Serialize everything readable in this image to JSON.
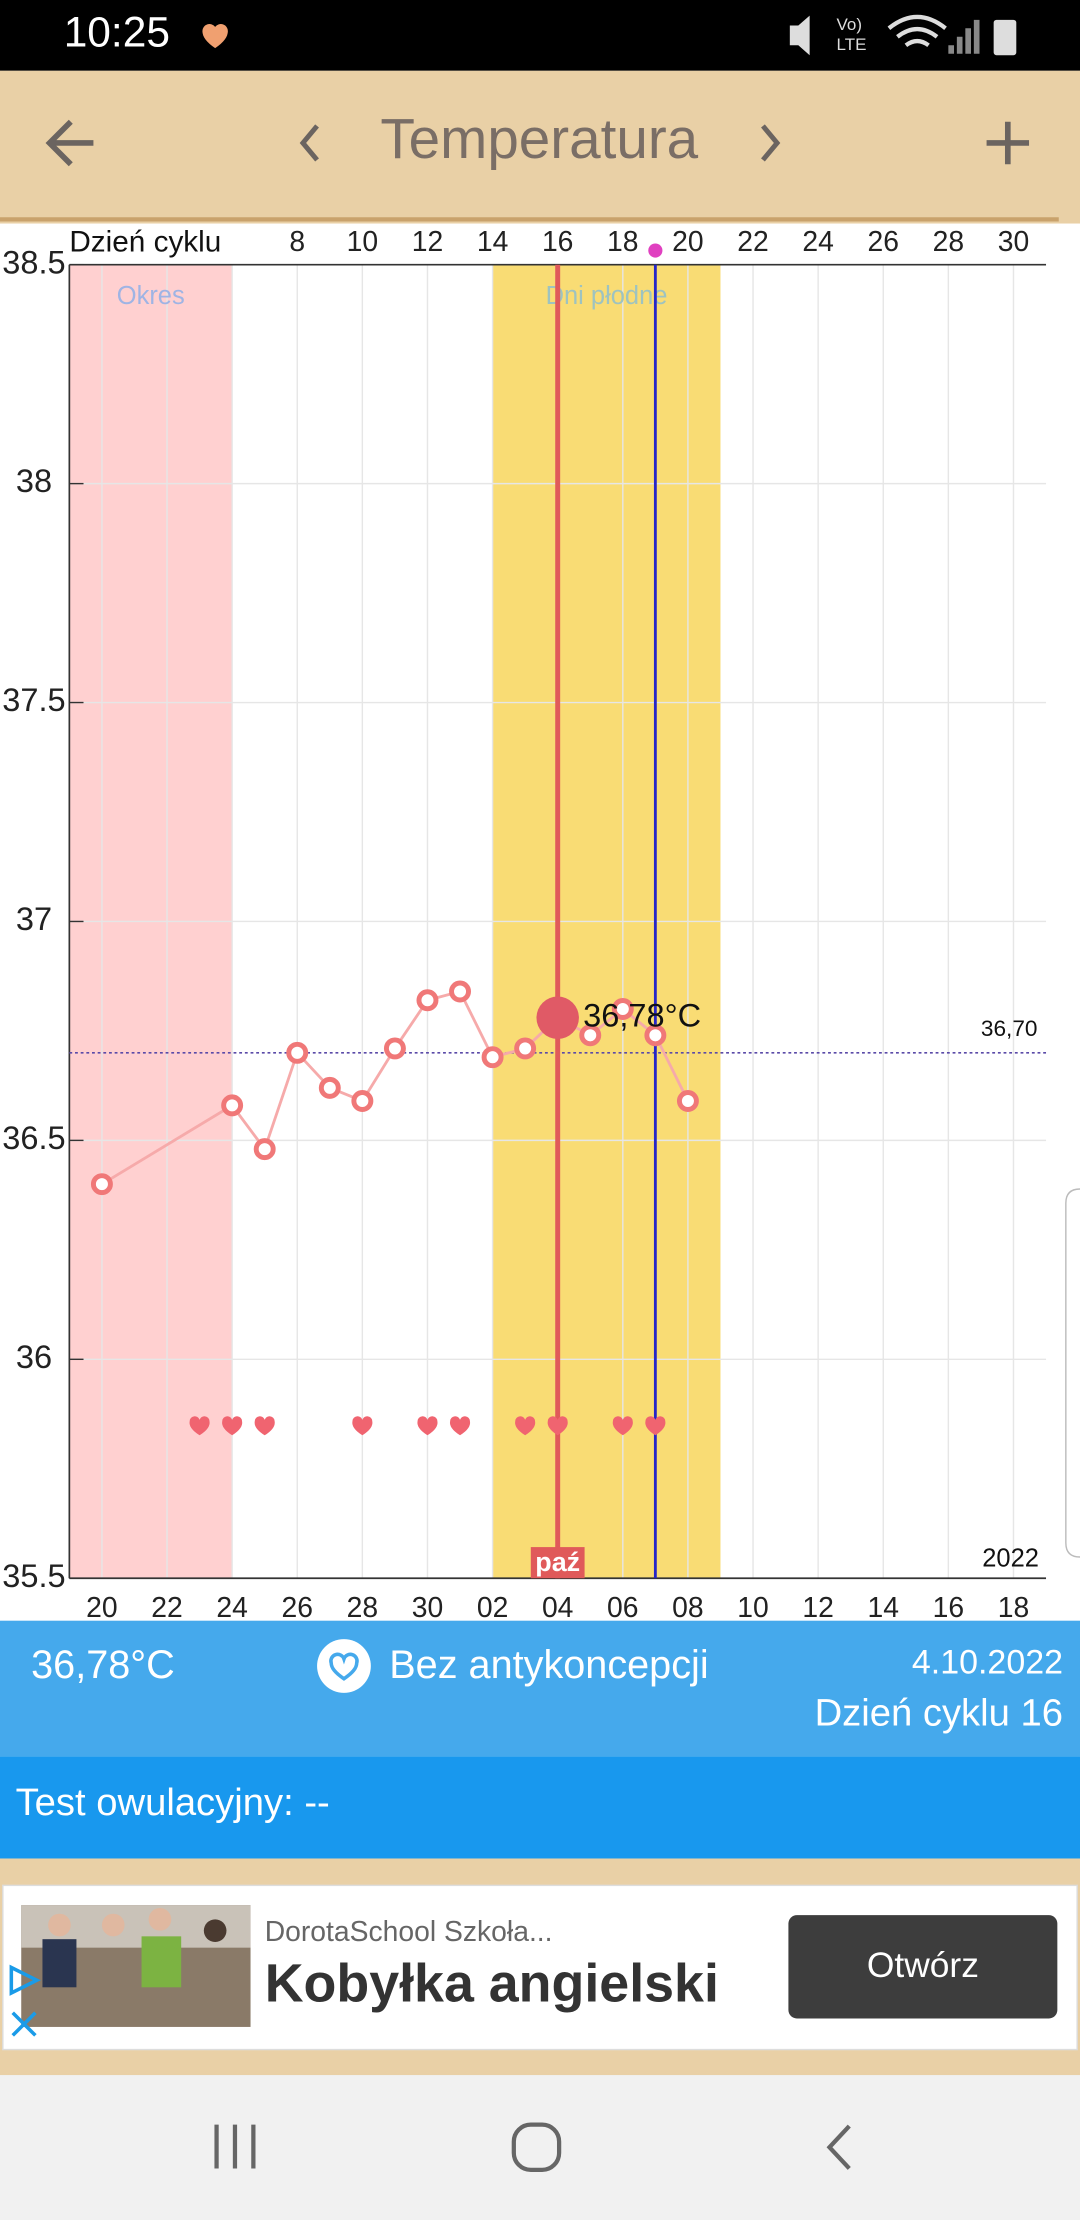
{
  "status_bar": {
    "time": "10:25",
    "network": [
      "Vo)",
      "LTE"
    ]
  },
  "header": {
    "title": "Temperatura"
  },
  "chart_data": {
    "type": "line",
    "x_label": "Dzień cyklu",
    "x": [
      2,
      6,
      7,
      8,
      9,
      10,
      11,
      12,
      13,
      14,
      15,
      16,
      17,
      18,
      19,
      20
    ],
    "values": [
      36.4,
      36.58,
      36.48,
      36.7,
      36.62,
      36.59,
      36.71,
      36.82,
      36.84,
      36.69,
      36.71,
      36.78,
      36.74,
      36.8,
      36.74,
      36.59
    ],
    "color": "#f07878",
    "xlim": [
      1,
      31
    ],
    "xticks": [
      8,
      10,
      12,
      14,
      16,
      18,
      20,
      22,
      24,
      26,
      28,
      30
    ],
    "x2ticks": [
      {
        "value": 2,
        "label": "20"
      },
      {
        "value": 4,
        "label": "22"
      },
      {
        "value": 6,
        "label": "24"
      },
      {
        "value": 8,
        "label": "26"
      },
      {
        "value": 10,
        "label": "28"
      },
      {
        "value": 12,
        "label": "30"
      },
      {
        "value": 14,
        "label": "02"
      },
      {
        "value": 16,
        "label": "04"
      },
      {
        "value": 18,
        "label": "06"
      },
      {
        "value": 20,
        "label": "08"
      },
      {
        "value": 22,
        "label": "10"
      },
      {
        "value": 24,
        "label": "12"
      },
      {
        "value": 26,
        "label": "14"
      },
      {
        "value": 28,
        "label": "16"
      },
      {
        "value": 30,
        "label": "18"
      }
    ],
    "ylim": [
      35.5,
      38.5
    ],
    "yticks": [
      35.5,
      36,
      36.5,
      37,
      37.5,
      38,
      38.5
    ],
    "grid": true,
    "bands": [
      {
        "label": "Okres",
        "range": [
          1,
          6
        ],
        "color": "#ffd0d0"
      },
      {
        "label": "Dni płodne",
        "range": [
          14,
          21
        ],
        "color": "#f9dc74"
      }
    ],
    "vlines": [
      {
        "x": 16,
        "color": "#e05a5a",
        "label": "paź"
      },
      {
        "x": 19,
        "color": "#2626c8"
      }
    ],
    "reference_line": {
      "value": 36.7,
      "label": "36,70"
    },
    "heart_days": [
      5,
      6,
      7,
      10,
      12,
      13,
      15,
      16,
      18,
      19
    ],
    "annotations": [
      {
        "x": 16,
        "y": 36.78,
        "label": "36,78°C"
      }
    ],
    "year_label": "2022"
  },
  "summary": {
    "temperature": "36,78°C",
    "contraception": "Bez antykoncepcji",
    "date": "4.10.2022",
    "cycle_day": "Dzień cyklu 16"
  },
  "ovulation_test": "Test owulacyjny: --",
  "ad": {
    "advertiser": "DorotaSchool Szkoła...",
    "headline": "Kobyłka angielski",
    "button": "Otwórz"
  }
}
